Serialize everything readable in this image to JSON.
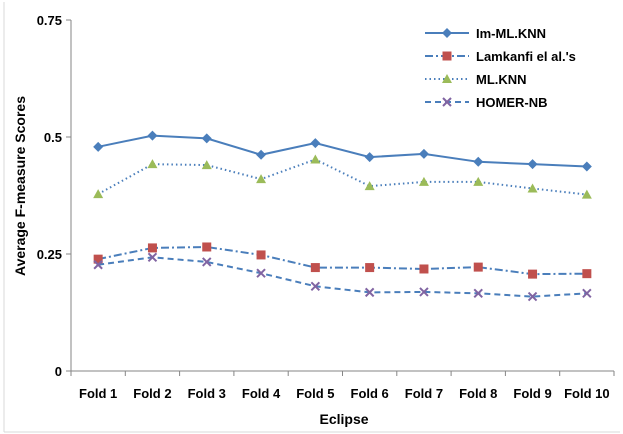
{
  "chart_data": {
    "type": "line",
    "categories": [
      "Fold 1",
      "Fold 2",
      "Fold 3",
      "Fold 4",
      "Fold 5",
      "Fold 6",
      "Fold 7",
      "Fold 8",
      "Fold 9",
      "Fold 10"
    ],
    "xlabel": "Eclipse",
    "ylabel": "Average F-measure Scores",
    "ylim": [
      0,
      0.75
    ],
    "yticks": [
      0,
      0.25,
      0.5,
      0.75
    ],
    "ytick_labels": [
      "0",
      "0.25",
      "0.5",
      "0.75"
    ],
    "grid": false,
    "legend_position": "top-right",
    "series": [
      {
        "name": "Im-ML.KNN",
        "color": "#4a7ebb",
        "line_style": "solid",
        "marker": "diamond",
        "values": [
          0.479,
          0.503,
          0.497,
          0.462,
          0.487,
          0.457,
          0.464,
          0.447,
          0.442,
          0.437
        ]
      },
      {
        "name": "Lamkanfi el al.'s",
        "color": "#4a7ebb",
        "marker_color": "#c0504d",
        "line_style": "dashdot",
        "marker": "square",
        "values": [
          0.239,
          0.263,
          0.265,
          0.248,
          0.221,
          0.221,
          0.218,
          0.222,
          0.207,
          0.208
        ]
      },
      {
        "name": "ML.KNN",
        "color": "#4a7ebb",
        "marker_color": "#9bbb59",
        "line_style": "dotted",
        "marker": "triangle",
        "values": [
          0.378,
          0.442,
          0.44,
          0.41,
          0.452,
          0.395,
          0.404,
          0.404,
          0.39,
          0.377
        ]
      },
      {
        "name": "HOMER-NB",
        "color": "#4a7ebb",
        "marker_color": "#8064a2",
        "line_style": "dashed",
        "marker": "x",
        "values": [
          0.227,
          0.243,
          0.233,
          0.209,
          0.181,
          0.168,
          0.169,
          0.166,
          0.159,
          0.166
        ]
      }
    ]
  }
}
